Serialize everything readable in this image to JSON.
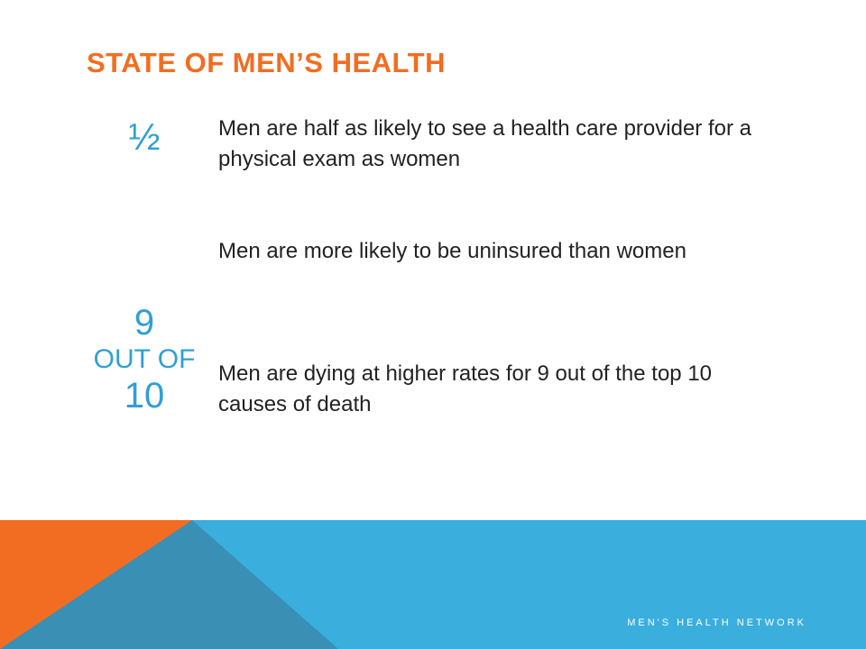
{
  "slide": {
    "title": "STATE OF MEN’S HEALTH",
    "stats": {
      "half": "½",
      "nine": "9",
      "out_of": "OUT OF",
      "ten": "10"
    },
    "points": [
      "Men are half as likely to see a health care provider for a physical exam as women",
      "Men are more likely to be uninsured than women",
      "Men are dying at higher rates for 9 out of the top 10 causes of death"
    ],
    "footer": "MEN'S HEALTH NETWORK",
    "colors": {
      "title": "#f26d21",
      "stat": "#2f9fd6",
      "band_blue": "#3aaedd",
      "band_orange": "#f26d21",
      "band_dark": "#3a8fb5"
    }
  }
}
